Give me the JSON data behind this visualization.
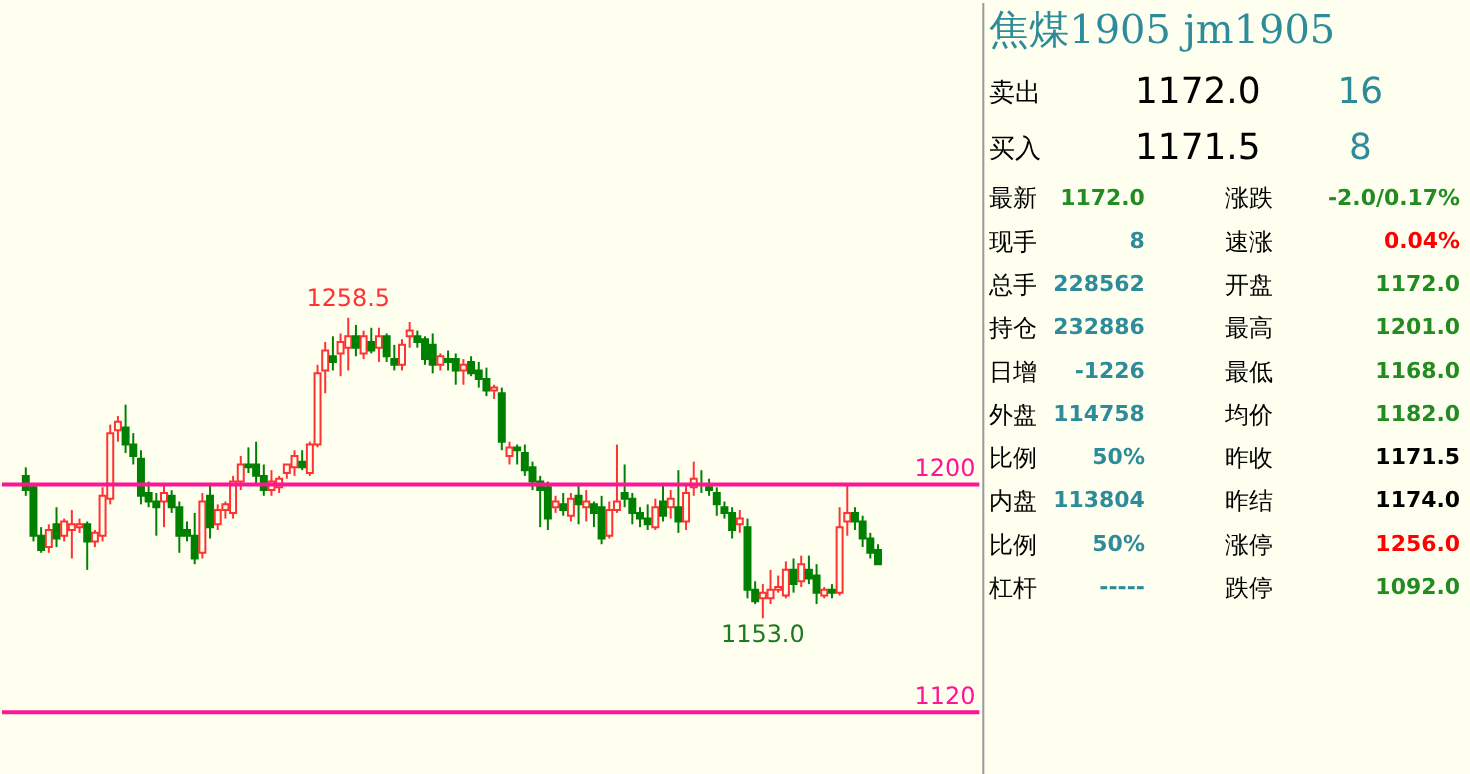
{
  "chart_data": [
    {
      "type": "candlestick",
      "tick_labels": false,
      "grid": false,
      "ylim": [
        1098,
        1369
      ],
      "categories": [
        null,
        null,
        null,
        null,
        null,
        null,
        null,
        null,
        null,
        null,
        null,
        null,
        null,
        null,
        null,
        null,
        null,
        null,
        null,
        null,
        null,
        null,
        null,
        null,
        null,
        null,
        null,
        null,
        null,
        null,
        null,
        null,
        null,
        null,
        null,
        null,
        null,
        null,
        null,
        null,
        null,
        null,
        null,
        null,
        null,
        null,
        null,
        null,
        null,
        null,
        null,
        null,
        null,
        null,
        null,
        null,
        null,
        null,
        null,
        null,
        null,
        null,
        null,
        null,
        null,
        null,
        null,
        null,
        null,
        null,
        null,
        null,
        null,
        null,
        null,
        null,
        null,
        null,
        null,
        null,
        null,
        null,
        null,
        null,
        null,
        null,
        null,
        null,
        null,
        null,
        null,
        null,
        null,
        null,
        null,
        null,
        null,
        null,
        null,
        null,
        null,
        null,
        null,
        null,
        null,
        null,
        null,
        null,
        null,
        null,
        null,
        null
      ],
      "ohlc": [
        [
          1203,
          1206,
          1196,
          1198
        ],
        [
          1199,
          1200,
          1180,
          1182
        ],
        [
          1182,
          1185,
          1176,
          1177
        ],
        [
          1178,
          1186,
          1176,
          1184
        ],
        [
          1186,
          1192,
          1178,
          1181
        ],
        [
          1182,
          1188,
          1180,
          1187
        ],
        [
          1184,
          1191,
          1174,
          1186
        ],
        [
          1185,
          1188,
          1183,
          1186
        ],
        [
          1186,
          1187,
          1170,
          1180
        ],
        [
          1180,
          1184,
          1178,
          1183
        ],
        [
          1182,
          1199,
          1180,
          1196
        ],
        [
          1195,
          1221,
          1193,
          1218
        ],
        [
          1219,
          1224,
          1215,
          1222
        ],
        [
          1220,
          1228,
          1211,
          1214
        ],
        [
          1214,
          1218,
          1207,
          1210
        ],
        [
          1209,
          1212,
          1193,
          1196
        ],
        [
          1197,
          1201,
          1192,
          1194
        ],
        [
          1194,
          1197,
          1182,
          1192
        ],
        [
          1194,
          1200,
          1185,
          1197
        ],
        [
          1196,
          1198,
          1190,
          1192
        ],
        [
          1192,
          1194,
          1176,
          1182
        ],
        [
          1184,
          1187,
          1180,
          1182
        ],
        [
          1182,
          1190,
          1172,
          1174
        ],
        [
          1176,
          1197,
          1174,
          1194
        ],
        [
          1196,
          1200,
          1181,
          1185
        ],
        [
          1186,
          1193,
          1184,
          1191
        ],
        [
          1191,
          1194,
          1188,
          1193
        ],
        [
          1190,
          1203,
          1188,
          1201
        ],
        [
          1201,
          1210,
          1198,
          1207
        ],
        [
          1207,
          1213,
          1204,
          1206
        ],
        [
          1207,
          1215,
          1200,
          1203
        ],
        [
          1203,
          1207,
          1196,
          1198
        ],
        [
          1198,
          1205,
          1196,
          1201
        ],
        [
          1199,
          1203,
          1197,
          1202
        ],
        [
          1204,
          1207,
          1202,
          1207
        ],
        [
          1206,
          1212,
          1203,
          1210
        ],
        [
          1208,
          1212,
          1205,
          1206
        ],
        [
          1204,
          1215,
          1203,
          1214
        ],
        [
          1214,
          1242,
          1213,
          1239
        ],
        [
          1240,
          1250,
          1232,
          1247
        ],
        [
          1245,
          1252,
          1240,
          1243
        ],
        [
          1246,
          1253,
          1238,
          1250
        ],
        [
          1248,
          1258.5,
          1240,
          1252
        ],
        [
          1252,
          1256,
          1245,
          1248
        ],
        [
          1246,
          1254,
          1244,
          1252
        ],
        [
          1250,
          1255,
          1246,
          1247
        ],
        [
          1248,
          1255,
          1243,
          1252
        ],
        [
          1252,
          1253,
          1243,
          1245
        ],
        [
          1244,
          1249,
          1240,
          1242
        ],
        [
          1242,
          1251,
          1240,
          1249
        ],
        [
          1252,
          1257,
          1248,
          1254
        ],
        [
          1252,
          1254,
          1248,
          1250
        ],
        [
          1251,
          1252,
          1242,
          1244
        ],
        [
          1249,
          1253,
          1239,
          1242
        ],
        [
          1242,
          1246,
          1240,
          1245
        ],
        [
          1244,
          1247,
          1240,
          1243
        ],
        [
          1244,
          1246,
          1235,
          1240
        ],
        [
          1240,
          1244,
          1235,
          1242
        ],
        [
          1243,
          1245,
          1238,
          1239
        ],
        [
          1240,
          1243,
          1234,
          1237
        ],
        [
          1237,
          1241,
          1231,
          1233
        ],
        [
          1233,
          1235,
          1230,
          1234
        ],
        [
          1232,
          1234,
          1212,
          1215
        ],
        [
          1210,
          1215,
          1207,
          1213
        ],
        [
          1213,
          1214,
          1207,
          1212
        ],
        [
          1211,
          1214,
          1203,
          1205
        ],
        [
          1206,
          1208,
          1198,
          1201
        ],
        [
          1201,
          1203,
          1185,
          1198
        ],
        [
          1199,
          1201,
          1184,
          1188
        ],
        [
          1192,
          1196,
          1190,
          1194
        ],
        [
          1193,
          1197,
          1189,
          1191
        ],
        [
          1189,
          1197,
          1187,
          1195
        ],
        [
          1196,
          1200,
          1186,
          1193
        ],
        [
          1192,
          1198,
          1187,
          1194
        ],
        [
          1193,
          1194,
          1185,
          1190
        ],
        [
          1192,
          1196,
          1179,
          1181
        ],
        [
          1182,
          1194,
          1181,
          1191
        ],
        [
          1191,
          1214,
          1190,
          1194
        ],
        [
          1197,
          1207,
          1192,
          1195
        ],
        [
          1195,
          1197,
          1186,
          1190
        ],
        [
          1190,
          1192,
          1185,
          1188
        ],
        [
          1188,
          1193,
          1184,
          1186
        ],
        [
          1185,
          1195,
          1184,
          1192
        ],
        [
          1194,
          1200,
          1187,
          1189
        ],
        [
          1192,
          1198,
          1188,
          1195
        ],
        [
          1192,
          1205,
          1183,
          1187
        ],
        [
          1187,
          1200,
          1184,
          1197
        ],
        [
          1199,
          1208,
          1196,
          1202
        ],
        [
          1200,
          1205,
          1197,
          1200
        ],
        [
          1199,
          1202,
          1196,
          1198
        ],
        [
          1197,
          1199,
          1189,
          1193
        ],
        [
          1192,
          1194,
          1188,
          1190
        ],
        [
          1190,
          1192,
          1181,
          1184
        ],
        [
          1186,
          1191,
          1183,
          1188
        ],
        [
          1185,
          1188,
          1160,
          1163
        ],
        [
          1163,
          1166,
          1158,
          1159
        ],
        [
          1160,
          1165,
          1153,
          1162
        ],
        [
          1160,
          1170,
          1158,
          1163
        ],
        [
          1163,
          1168,
          1162,
          1164
        ],
        [
          1161,
          1173,
          1160,
          1170
        ],
        [
          1170,
          1174,
          1162,
          1165
        ],
        [
          1166,
          1175,
          1164,
          1172
        ],
        [
          1170,
          1175,
          1165,
          1167
        ],
        [
          1168,
          1172,
          1158,
          1162
        ],
        [
          1161,
          1164,
          1160,
          1163
        ],
        [
          1163,
          1165,
          1160,
          1162
        ],
        [
          1162,
          1192,
          1161,
          1185
        ],
        [
          1187,
          1200,
          1182,
          1190
        ],
        [
          1190,
          1192,
          1184,
          1187
        ],
        [
          1187,
          1189,
          1178,
          1181
        ],
        [
          1181,
          1183,
          1174,
          1176
        ],
        [
          1177,
          1179,
          1172,
          1172
        ]
      ],
      "colors": [
        "#008000",
        "#008000",
        "#008000",
        "#ff3232",
        "#008000",
        "#ff3232",
        "#ff3232",
        "#ff3232",
        "#008000",
        "#ff3232",
        "#ff3232",
        "#ff3232",
        "#ff3232",
        "#008000",
        "#008000",
        "#008000",
        "#008000",
        "#008000",
        "#ff3232",
        "#008000",
        "#008000",
        "#008000",
        "#008000",
        "#ff3232",
        "#008000",
        "#ff3232",
        "#ff3232",
        "#ff3232",
        "#ff3232",
        "#008000",
        "#008000",
        "#008000",
        "#ff3232",
        "#ff3232",
        "#ff3232",
        "#ff3232",
        "#008000",
        "#ff3232",
        "#ff3232",
        "#ff3232",
        "#008000",
        "#ff3232",
        "#ff3232",
        "#008000",
        "#ff3232",
        "#008000",
        "#ff3232",
        "#008000",
        "#008000",
        "#ff3232",
        "#ff3232",
        "#008000",
        "#008000",
        "#008000",
        "#ff3232",
        "#008000",
        "#008000",
        "#ff3232",
        "#008000",
        "#008000",
        "#008000",
        "#ff3232",
        "#008000",
        "#ff3232",
        "#008000",
        "#008000",
        "#008000",
        "#008000",
        "#008000",
        "#ff3232",
        "#008000",
        "#ff3232",
        "#008000",
        "#ff3232",
        "#008000",
        "#008000",
        "#ff3232",
        "#ff3232",
        "#008000",
        "#008000",
        "#008000",
        "#008000",
        "#ff3232",
        "#008000",
        "#ff3232",
        "#008000",
        "#ff3232",
        "#ff3232",
        "#008000",
        "#008000",
        "#008000",
        "#008000",
        "#008000",
        "#ff3232",
        "#008000",
        "#008000",
        "#ff3232",
        "#ff3232",
        "#ff3232",
        "#ff3232",
        "#008000",
        "#ff3232",
        "#008000",
        "#008000",
        "#ff3232",
        "#008000",
        "#ff3232",
        "#ff3232",
        "#008000",
        "#008000",
        "#008000",
        "#008000"
      ],
      "ref_lines": [
        {
          "axis": "y",
          "value": 1200,
          "label": "1200",
          "color": "#ff1493"
        },
        {
          "axis": "y",
          "value": 1120,
          "label": "1120",
          "color": "#ff1493"
        }
      ],
      "annotations": [
        {
          "text": "1258.5",
          "y": 1258.5
        },
        {
          "text": "1153.0",
          "y": 1153
        }
      ]
    },
    {
      "type": "other",
      "title": "焦煤1905  jm1905",
      "annotations": [
        "卖出",
        "1172.0",
        "16",
        "买入",
        "1171.5",
        "8",
        "最新",
        "1172.0",
        "涨跌",
        "-2.0/0.17%",
        "现手",
        "8",
        "速涨",
        "0.04%",
        "总手",
        "228562",
        "开盘",
        "1172.0",
        "持仓",
        "232886",
        "最高",
        "1201.0",
        "日增",
        "-1226",
        "最低",
        "1168.0",
        "外盘",
        "114758",
        "均价",
        "1182.0",
        "比例",
        "50%",
        "昨收",
        "1171.5",
        "内盘",
        "113804",
        "昨结",
        "1174.0",
        "比例",
        "50%",
        "涨停",
        "1256.0",
        "杠杆",
        "-----",
        "跌停",
        "1092.0"
      ],
      "colors": [
        "#000000",
        "#000000",
        "#2e8b9a",
        "#000000",
        "#000000",
        "#2e8b9a",
        "#000000",
        "#228b22",
        "#000000",
        "#228b22",
        "#000000",
        "#2e8b9a",
        "#000000",
        "#ff0000",
        "#000000",
        "#2e8b9a",
        "#000000",
        "#228b22",
        "#000000",
        "#2e8b9a",
        "#000000",
        "#228b22",
        "#000000",
        "#2e8b9a",
        "#000000",
        "#228b22",
        "#000000",
        "#2e8b9a",
        "#000000",
        "#228b22",
        "#000000",
        "#2e8b9a",
        "#000000",
        "#000000",
        "#000000",
        "#2e8b9a",
        "#000000",
        "#000000",
        "#000000",
        "#2e8b9a",
        "#000000",
        "#ff0000",
        "#000000",
        "#2e8b9a",
        "#000000",
        "#228b22"
      ]
    }
  ]
}
